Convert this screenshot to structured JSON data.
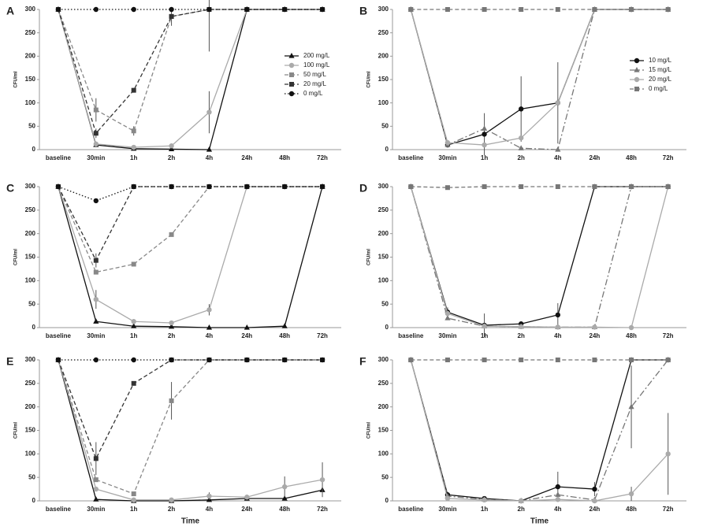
{
  "chart_data": [
    {
      "type": "line",
      "panel_label": "A",
      "ylabel": "CFU/ml",
      "categories": [
        "baseline",
        "30min",
        "1h",
        "2h",
        "4h",
        "24h",
        "48h",
        "72h"
      ],
      "ylim": [
        0,
        300
      ],
      "yticks": [
        0,
        50,
        100,
        150,
        200,
        250,
        300
      ],
      "legend": "center right",
      "series": [
        {
          "name": "200 mg/L",
          "color": "#111111",
          "line_style": "solid",
          "marker": "triangle",
          "values": [
            300,
            10,
            2,
            1,
            0,
            300,
            300,
            300
          ]
        },
        {
          "name": "100 mg/L",
          "color": "#aaaaaa",
          "line_style": "solid",
          "marker": "circle",
          "values": [
            300,
            12,
            5,
            8,
            80,
            300,
            300,
            300
          ],
          "errors": [
            null,
            null,
            null,
            null,
            45,
            null,
            null,
            null
          ]
        },
        {
          "name": "50 mg/L",
          "color": "#888888",
          "line_style": "dashed",
          "marker": "square",
          "values": [
            300,
            85,
            40,
            285,
            300,
            300,
            300,
            300
          ],
          "errors": [
            null,
            25,
            10,
            null,
            90,
            null,
            null,
            null
          ]
        },
        {
          "name": "20 mg/L",
          "color": "#333333",
          "line_style": "dashed",
          "marker": "square",
          "values": [
            300,
            35,
            127,
            285,
            300,
            300,
            300,
            300
          ],
          "errors": [
            null,
            10,
            5,
            20,
            null,
            null,
            null,
            null
          ]
        },
        {
          "name": "0 mg/L",
          "color": "#111111",
          "line_style": "dotted",
          "marker": "circle",
          "values": [
            300,
            300,
            300,
            300,
            300,
            300,
            300,
            300
          ]
        }
      ]
    },
    {
      "type": "line",
      "panel_label": "B",
      "ylabel": "CFU/ml",
      "categories": [
        "baseline",
        "30min",
        "1h",
        "2h",
        "4h",
        "24h",
        "48h",
        "72h"
      ],
      "ylim": [
        0,
        300
      ],
      "yticks": [
        0,
        50,
        100,
        150,
        200,
        250,
        300
      ],
      "legend": "center right",
      "series": [
        {
          "name": "10 mg/L",
          "color": "#111111",
          "line_style": "solid",
          "marker": "circle",
          "values": [
            300,
            10,
            33,
            87,
            100,
            300,
            300,
            300
          ],
          "errors": [
            null,
            null,
            45,
            70,
            87,
            null,
            null,
            null
          ]
        },
        {
          "name": "15 mg/L",
          "color": "#777777",
          "line_style": "dashdot",
          "marker": "triangle",
          "values": [
            300,
            10,
            45,
            3,
            0,
            300,
            300,
            300
          ]
        },
        {
          "name": "20 mg/L",
          "color": "#aaaaaa",
          "line_style": "solid",
          "marker": "circle",
          "values": [
            300,
            15,
            10,
            25,
            100,
            300,
            300,
            300
          ]
        },
        {
          "name": "0 mg/L",
          "color": "#777777",
          "line_style": "dashed",
          "marker": "square",
          "values": [
            300,
            300,
            300,
            300,
            300,
            300,
            300,
            300
          ]
        }
      ]
    },
    {
      "type": "line",
      "panel_label": "C",
      "ylabel": "CFU/ml",
      "categories": [
        "baseline",
        "30min",
        "1h",
        "2h",
        "4h",
        "24h",
        "48h",
        "72h"
      ],
      "ylim": [
        0,
        300
      ],
      "yticks": [
        0,
        50,
        100,
        150,
        200,
        250,
        300
      ],
      "series": [
        {
          "color": "#111111",
          "line_style": "solid",
          "marker": "triangle",
          "values": [
            300,
            13,
            3,
            2,
            0,
            0,
            3,
            300
          ]
        },
        {
          "color": "#aaaaaa",
          "line_style": "solid",
          "marker": "circle",
          "values": [
            300,
            60,
            13,
            10,
            38,
            300,
            300,
            300
          ],
          "errors": [
            null,
            20,
            null,
            null,
            12,
            null,
            null,
            null
          ]
        },
        {
          "color": "#888888",
          "line_style": "dashed",
          "marker": "square",
          "values": [
            300,
            118,
            135,
            198,
            300,
            300,
            300,
            300
          ]
        },
        {
          "color": "#333333",
          "line_style": "dashed",
          "marker": "square",
          "values": [
            300,
            143,
            300,
            300,
            300,
            300,
            300,
            300
          ],
          "errors": [
            null,
            15,
            null,
            null,
            null,
            null,
            null,
            null
          ]
        },
        {
          "color": "#111111",
          "line_style": "dotted",
          "marker": "circle",
          "values": [
            300,
            270,
            300,
            300,
            300,
            300,
            300,
            300
          ]
        }
      ]
    },
    {
      "type": "line",
      "panel_label": "D",
      "ylabel": "CFU/ml",
      "categories": [
        "baseline",
        "30min",
        "1h",
        "2h",
        "4h",
        "24h",
        "48h",
        "72h"
      ],
      "ylim": [
        0,
        300
      ],
      "yticks": [
        0,
        50,
        100,
        150,
        200,
        250,
        300
      ],
      "series": [
        {
          "color": "#111111",
          "line_style": "solid",
          "marker": "circle",
          "values": [
            300,
            33,
            5,
            8,
            27,
            300,
            300,
            300
          ],
          "errors": [
            null,
            10,
            25,
            null,
            25,
            null,
            null,
            null
          ]
        },
        {
          "color": "#777777",
          "line_style": "dashdot",
          "marker": "triangle",
          "values": [
            300,
            20,
            3,
            2,
            1,
            1,
            300,
            300
          ]
        },
        {
          "color": "#aaaaaa",
          "line_style": "solid",
          "marker": "circle",
          "values": [
            300,
            30,
            3,
            2,
            1,
            1,
            0,
            300
          ]
        },
        {
          "color": "#777777",
          "line_style": "dashed",
          "marker": "square",
          "values": [
            300,
            298,
            300,
            300,
            300,
            300,
            300,
            300
          ]
        }
      ]
    },
    {
      "type": "line",
      "panel_label": "E",
      "ylabel": "CFU/ml",
      "xlabel": "Time",
      "categories": [
        "baseline",
        "30min",
        "1h",
        "2h",
        "4h",
        "24h",
        "48h",
        "72h"
      ],
      "ylim": [
        0,
        300
      ],
      "yticks": [
        0,
        50,
        100,
        150,
        200,
        250,
        300
      ],
      "series": [
        {
          "color": "#111111",
          "line_style": "solid",
          "marker": "triangle",
          "values": [
            300,
            3,
            0,
            0,
            2,
            5,
            5,
            23
          ]
        },
        {
          "color": "#aaaaaa",
          "line_style": "solid",
          "marker": "circle",
          "values": [
            300,
            25,
            2,
            2,
            10,
            8,
            30,
            45
          ],
          "errors": [
            null,
            null,
            null,
            null,
            8,
            5,
            22,
            37
          ]
        },
        {
          "color": "#888888",
          "line_style": "dashed",
          "marker": "square",
          "values": [
            300,
            45,
            15,
            213,
            300,
            300,
            300,
            300
          ],
          "errors": [
            null,
            null,
            null,
            40,
            null,
            null,
            null,
            null
          ]
        },
        {
          "color": "#333333",
          "line_style": "dashed",
          "marker": "square",
          "values": [
            300,
            90,
            250,
            300,
            300,
            300,
            300,
            300
          ],
          "errors": [
            null,
            35,
            null,
            null,
            null,
            null,
            null,
            null
          ]
        },
        {
          "color": "#111111",
          "line_style": "dotted",
          "marker": "circle",
          "values": [
            300,
            300,
            300,
            300,
            300,
            300,
            300,
            300
          ]
        }
      ]
    },
    {
      "type": "line",
      "panel_label": "F",
      "ylabel": "CFU/ml",
      "xlabel": "Time",
      "categories": [
        "baseline",
        "30min",
        "1h",
        "2h",
        "4h",
        "24h",
        "48h",
        "72h"
      ],
      "ylim": [
        0,
        300
      ],
      "yticks": [
        0,
        50,
        100,
        150,
        200,
        250,
        300
      ],
      "series": [
        {
          "color": "#111111",
          "line_style": "solid",
          "marker": "circle",
          "values": [
            300,
            13,
            5,
            0,
            30,
            25,
            300,
            300
          ],
          "errors": [
            null,
            null,
            null,
            null,
            32,
            15,
            null,
            null
          ]
        },
        {
          "color": "#777777",
          "line_style": "dashdot",
          "marker": "triangle",
          "values": [
            300,
            10,
            3,
            0,
            13,
            2,
            200,
            300
          ],
          "errors": [
            null,
            null,
            null,
            null,
            null,
            null,
            88,
            null
          ]
        },
        {
          "color": "#aaaaaa",
          "line_style": "solid",
          "marker": "circle",
          "values": [
            300,
            5,
            2,
            0,
            3,
            0,
            15,
            100
          ],
          "errors": [
            null,
            null,
            null,
            null,
            null,
            null,
            15,
            87
          ]
        },
        {
          "color": "#777777",
          "line_style": "dashed",
          "marker": "square",
          "values": [
            300,
            300,
            300,
            300,
            300,
            300,
            300,
            300
          ]
        }
      ]
    }
  ]
}
